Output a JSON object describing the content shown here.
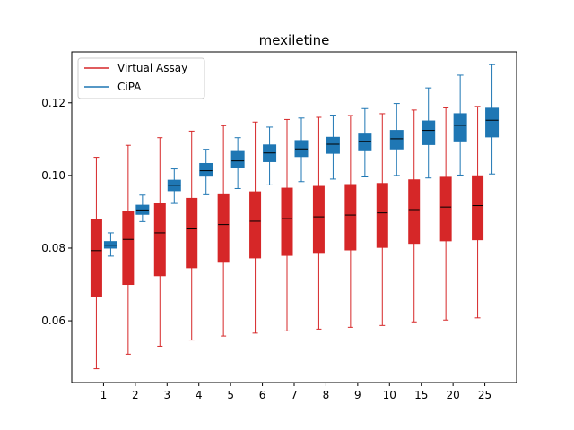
{
  "chart_data": {
    "type": "box",
    "title": "mexiletine",
    "xlabel": "",
    "ylabel": "",
    "categories": [
      "1",
      "2",
      "3",
      "4",
      "5",
      "6",
      "7",
      "8",
      "9",
      "10",
      "15",
      "20",
      "25"
    ],
    "ylim": [
      0.043,
      0.134
    ],
    "yticks": [
      0.06,
      0.08,
      0.1,
      0.12
    ],
    "ytick_labels": [
      "0.06",
      "0.08",
      "0.10",
      "0.12"
    ],
    "legend": {
      "placement": "upper-left"
    },
    "series": [
      {
        "name": "Virtual Assay",
        "color": "#d62728",
        "boxes": [
          {
            "whislo": 0.0468,
            "q1": 0.0668,
            "med": 0.0793,
            "q3": 0.088,
            "whishi": 0.105
          },
          {
            "whislo": 0.0508,
            "q1": 0.07,
            "med": 0.0824,
            "q3": 0.0902,
            "whishi": 0.1083
          },
          {
            "whislo": 0.053,
            "q1": 0.0724,
            "med": 0.0842,
            "q3": 0.0922,
            "whishi": 0.1104
          },
          {
            "whislo": 0.0547,
            "q1": 0.0746,
            "med": 0.0853,
            "q3": 0.0937,
            "whishi": 0.1122
          },
          {
            "whislo": 0.0558,
            "q1": 0.0761,
            "med": 0.0865,
            "q3": 0.0947,
            "whishi": 0.1137
          },
          {
            "whislo": 0.0566,
            "q1": 0.0773,
            "med": 0.0874,
            "q3": 0.0955,
            "whishi": 0.1147
          },
          {
            "whislo": 0.0572,
            "q1": 0.078,
            "med": 0.0881,
            "q3": 0.0965,
            "whishi": 0.1154
          },
          {
            "whislo": 0.0577,
            "q1": 0.0788,
            "med": 0.0886,
            "q3": 0.097,
            "whishi": 0.116
          },
          {
            "whislo": 0.0582,
            "q1": 0.0795,
            "med": 0.0891,
            "q3": 0.0975,
            "whishi": 0.1165
          },
          {
            "whislo": 0.0587,
            "q1": 0.0802,
            "med": 0.0897,
            "q3": 0.0978,
            "whishi": 0.117
          },
          {
            "whislo": 0.0597,
            "q1": 0.0813,
            "med": 0.0906,
            "q3": 0.0988,
            "whishi": 0.118
          },
          {
            "whislo": 0.0602,
            "q1": 0.082,
            "med": 0.0913,
            "q3": 0.0995,
            "whishi": 0.1186
          },
          {
            "whislo": 0.0608,
            "q1": 0.0823,
            "med": 0.0917,
            "q3": 0.0999,
            "whishi": 0.119
          }
        ]
      },
      {
        "name": "CiPA",
        "color": "#1f77b4",
        "boxes": [
          {
            "whislo": 0.0778,
            "q1": 0.08,
            "med": 0.0808,
            "q3": 0.0818,
            "whishi": 0.0842
          },
          {
            "whislo": 0.0873,
            "q1": 0.0893,
            "med": 0.0905,
            "q3": 0.0918,
            "whishi": 0.0946
          },
          {
            "whislo": 0.0923,
            "q1": 0.0958,
            "med": 0.0973,
            "q3": 0.0987,
            "whishi": 0.1018
          },
          {
            "whislo": 0.0947,
            "q1": 0.0998,
            "med": 0.1013,
            "q3": 0.1033,
            "whishi": 0.1072
          },
          {
            "whislo": 0.0964,
            "q1": 0.1021,
            "med": 0.104,
            "q3": 0.1066,
            "whishi": 0.1104
          },
          {
            "whislo": 0.0974,
            "q1": 0.1038,
            "med": 0.1062,
            "q3": 0.1084,
            "whishi": 0.1133
          },
          {
            "whislo": 0.0983,
            "q1": 0.1052,
            "med": 0.1073,
            "q3": 0.1096,
            "whishi": 0.1158
          },
          {
            "whislo": 0.099,
            "q1": 0.1061,
            "med": 0.1086,
            "q3": 0.1105,
            "whishi": 0.1166
          },
          {
            "whislo": 0.0996,
            "q1": 0.1068,
            "med": 0.1094,
            "q3": 0.1114,
            "whishi": 0.1184
          },
          {
            "whislo": 0.1,
            "q1": 0.1073,
            "med": 0.1101,
            "q3": 0.1124,
            "whishi": 0.1198
          },
          {
            "whislo": 0.0993,
            "q1": 0.1085,
            "med": 0.1124,
            "q3": 0.115,
            "whishi": 0.1241
          },
          {
            "whislo": 0.1001,
            "q1": 0.1095,
            "med": 0.1138,
            "q3": 0.117,
            "whishi": 0.1276
          },
          {
            "whislo": 0.1004,
            "q1": 0.1106,
            "med": 0.1152,
            "q3": 0.1185,
            "whishi": 0.1305
          }
        ]
      }
    ]
  }
}
